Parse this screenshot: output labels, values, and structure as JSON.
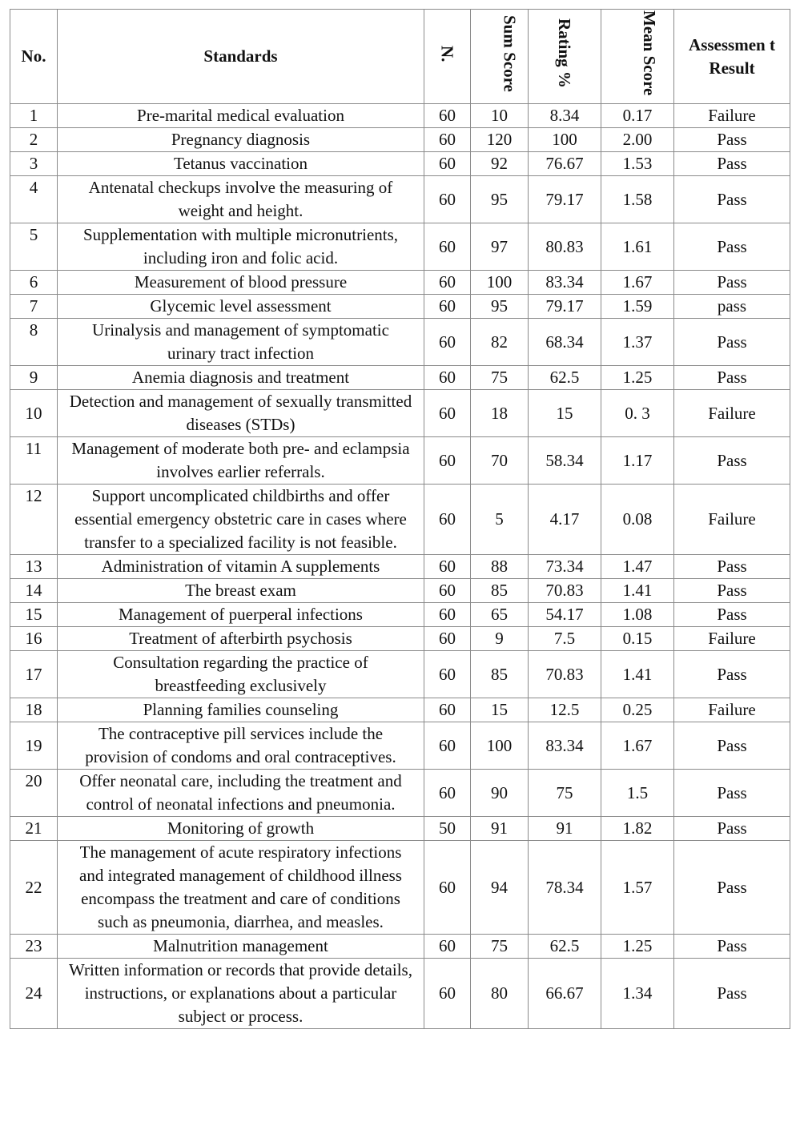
{
  "headers": {
    "no": "No.",
    "standards": "Standards",
    "n": "N.",
    "sum_score": "Sum Score",
    "rating": "Rating %",
    "mean_score": "Mean Score",
    "result": "Assessmen t Result"
  },
  "rows": [
    {
      "no": "1",
      "standard": "Pre-marital medical evaluation",
      "n": "60",
      "sum": "10",
      "rating": "8.34",
      "mean": "0.17",
      "result": "Failure"
    },
    {
      "no": "2",
      "standard": "Pregnancy diagnosis",
      "n": "60",
      "sum": "120",
      "rating": "100",
      "mean": "2.00",
      "result": "Pass"
    },
    {
      "no": "3",
      "standard": "Tetanus vaccination",
      "n": "60",
      "sum": "92",
      "rating": "76.67",
      "mean": "1.53",
      "result": "Pass"
    },
    {
      "no": "4",
      "standard": "Antenatal checkups involve the measuring of weight and height.",
      "n": "60",
      "sum": "95",
      "rating": "79.17",
      "mean": "1.58",
      "result": "Pass"
    },
    {
      "no": "5",
      "standard": "Supplementation with multiple micronutrients, including iron and folic acid.",
      "n": "60",
      "sum": "97",
      "rating": "80.83",
      "mean": "1.61",
      "result": "Pass"
    },
    {
      "no": "6",
      "standard": "Measurement of blood pressure",
      "n": "60",
      "sum": "100",
      "rating": "83.34",
      "mean": "1.67",
      "result": "Pass"
    },
    {
      "no": "7",
      "standard": "Glycemic level assessment",
      "n": "60",
      "sum": "95",
      "rating": "79.17",
      "mean": "1.59",
      "result": "pass"
    },
    {
      "no": "8",
      "standard": "Urinalysis and management of symptomatic urinary tract infection",
      "n": "60",
      "sum": "82",
      "rating": "68.34",
      "mean": "1.37",
      "result": "Pass"
    },
    {
      "no": "9",
      "standard": "Anemia diagnosis and treatment",
      "n": "60",
      "sum": "75",
      "rating": "62.5",
      "mean": "1.25",
      "result": "Pass"
    },
    {
      "no": "10",
      "standard": "Detection and management of sexually transmitted diseases (STDs)",
      "n": "60",
      "sum": "18",
      "rating": "15",
      "mean": "0. 3",
      "result": "Failure"
    },
    {
      "no": "11",
      "standard": "Management of moderate both pre- and eclampsia involves earlier referrals.",
      "n": "60",
      "sum": "70",
      "rating": "58.34",
      "mean": "1.17",
      "result": "Pass"
    },
    {
      "no": "12",
      "standard": "Support uncomplicated childbirths and offer essential emergency obstetric care in cases where transfer to a specialized facility is not feasible.",
      "n": "60",
      "sum": "5",
      "rating": "4.17",
      "mean": "0.08",
      "result": "Failure"
    },
    {
      "no": "13",
      "standard": "Administration of vitamin A supplements",
      "n": "60",
      "sum": "88",
      "rating": "73.34",
      "mean": "1.47",
      "result": "Pass"
    },
    {
      "no": "14",
      "standard": "The breast exam",
      "n": "60",
      "sum": "85",
      "rating": "70.83",
      "mean": "1.41",
      "result": "Pass"
    },
    {
      "no": "15",
      "standard": "Management of puerperal infections",
      "n": "60",
      "sum": "65",
      "rating": "54.17",
      "mean": "1.08",
      "result": "Pass"
    },
    {
      "no": "16",
      "standard": "Treatment of afterbirth psychosis",
      "n": "60",
      "sum": "9",
      "rating": "7.5",
      "mean": "0.15",
      "result": "Failure"
    },
    {
      "no": "17",
      "standard": "Consultation regarding the practice of breastfeeding exclusively",
      "n": "60",
      "sum": "85",
      "rating": "70.83",
      "mean": "1.41",
      "result": "Pass"
    },
    {
      "no": "18",
      "standard": "Planning families counseling",
      "n": "60",
      "sum": "15",
      "rating": "12.5",
      "mean": "0.25",
      "result": "Failure"
    },
    {
      "no": "19",
      "standard": "The contraceptive pill services include the provision of condoms and oral contraceptives.",
      "n": "60",
      "sum": "100",
      "rating": "83.34",
      "mean": "1.67",
      "result": "Pass"
    },
    {
      "no": "20",
      "standard": "Offer neonatal care, including the treatment and control of neonatal infections and pneumonia.",
      "n": "60",
      "sum": "90",
      "rating": "75",
      "mean": "1.5",
      "result": "Pass"
    },
    {
      "no": "21",
      "standard": "Monitoring of growth",
      "n": "50",
      "sum": "91",
      "rating": "91",
      "mean": "1.82",
      "result": "Pass"
    },
    {
      "no": "22",
      "standard": "The management of acute respiratory infections and integrated management of childhood illness encompass the treatment and care of conditions such as pneumonia, diarrhea, and measles.",
      "n": "60",
      "sum": "94",
      "rating": "78.34",
      "mean": "1.57",
      "result": "Pass"
    },
    {
      "no": "23",
      "standard": "Malnutrition management",
      "n": "60",
      "sum": "75",
      "rating": "62.5",
      "mean": "1.25",
      "result": "Pass"
    },
    {
      "no": "24",
      "standard": "Written information or records that provide details, instructions, or explanations about a particular subject or process.",
      "n": "60",
      "sum": "80",
      "rating": "66.67",
      "mean": "1.34",
      "result": "Pass"
    }
  ]
}
